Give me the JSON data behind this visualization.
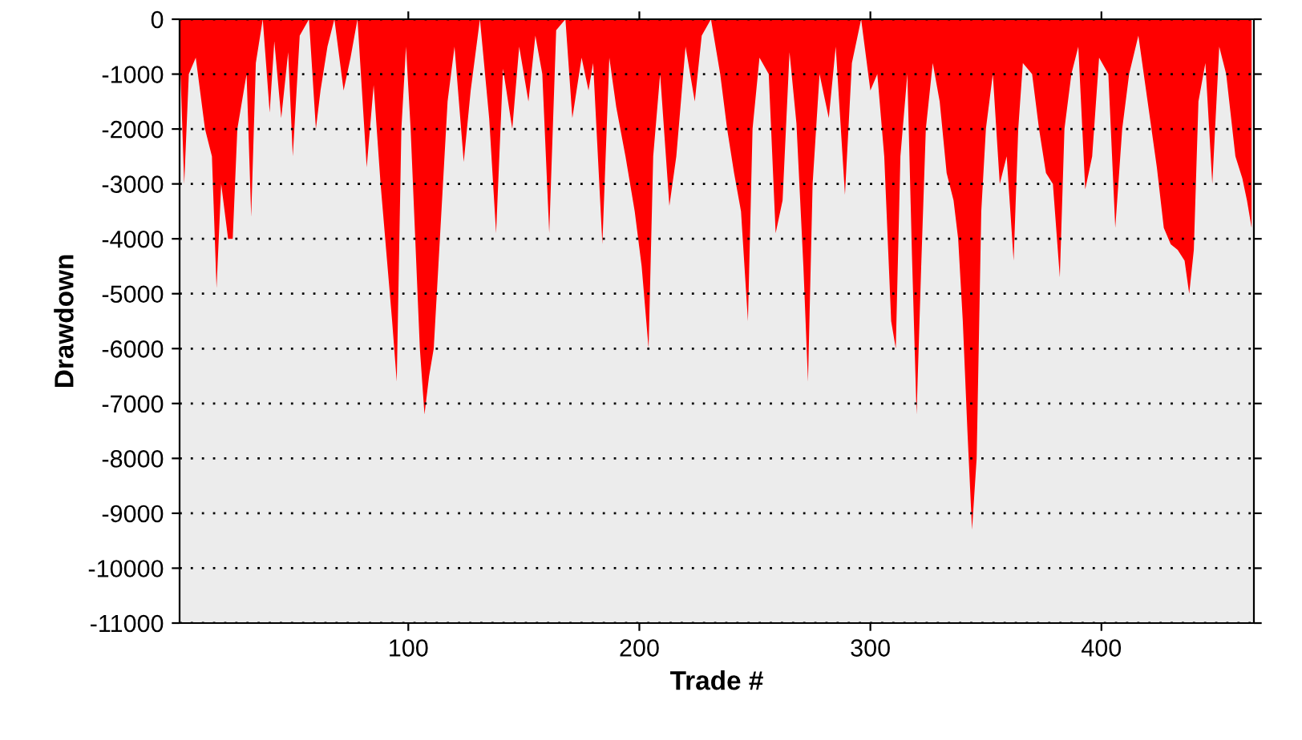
{
  "chart_data": {
    "type": "area",
    "xlabel": "Trade #",
    "ylabel": "Drawdown",
    "x": [
      1,
      3,
      5,
      8,
      12,
      15,
      17,
      19,
      22,
      24,
      26,
      28,
      30,
      32,
      34,
      37,
      40,
      42,
      45,
      48,
      50,
      53,
      57,
      60,
      62,
      65,
      68,
      72,
      75,
      78,
      82,
      85,
      88,
      91,
      93,
      95,
      97,
      99,
      101,
      103,
      105,
      107,
      109,
      111,
      113,
      115,
      117,
      120,
      124,
      127,
      131,
      135,
      138,
      141,
      145,
      148,
      152,
      155,
      158,
      161,
      164,
      168,
      171,
      175,
      178,
      180,
      184,
      187,
      190,
      194,
      198,
      201,
      204,
      206,
      209,
      213,
      216,
      220,
      224,
      227,
      231,
      235,
      238,
      241,
      244,
      247,
      249,
      252,
      256,
      259,
      262,
      265,
      268,
      271,
      273,
      275,
      278,
      282,
      285,
      289,
      292,
      296,
      300,
      303,
      306,
      309,
      311,
      313,
      316,
      318,
      320,
      322,
      324,
      327,
      330,
      333,
      336,
      338,
      340,
      342,
      344,
      346,
      348,
      350,
      353,
      356,
      359,
      362,
      364,
      366,
      370,
      373,
      376,
      379,
      382,
      384,
      387,
      390,
      393,
      396,
      399,
      403,
      406,
      409,
      412,
      416,
      420,
      424,
      427,
      430,
      433,
      436,
      438,
      440,
      442,
      445,
      448,
      451,
      454,
      458,
      461,
      463,
      465
    ],
    "series": [
      {
        "color": "#ff0000",
        "values": [
          -500,
          -3000,
          -1000,
          -700,
          -2000,
          -2500,
          -4900,
          -3000,
          -4000,
          -4000,
          -2000,
          -1500,
          -1000,
          -3600,
          -800,
          0,
          -1700,
          -400,
          -1800,
          -600,
          -2500,
          -300,
          0,
          -2000,
          -1300,
          -500,
          0,
          -1300,
          -700,
          0,
          -2700,
          -1200,
          -3000,
          -4500,
          -5500,
          -6600,
          -2000,
          -500,
          -2000,
          -4000,
          -6000,
          -7200,
          -6500,
          -6000,
          -4500,
          -3000,
          -1500,
          -500,
          -2600,
          -1300,
          0,
          -1800,
          -3900,
          -900,
          -2000,
          -500,
          -1500,
          -300,
          -1000,
          -3900,
          -200,
          0,
          -1800,
          -700,
          -1300,
          -800,
          -4100,
          -700,
          -1600,
          -2500,
          -3500,
          -4500,
          -6000,
          -2500,
          -1000,
          -3400,
          -2500,
          -500,
          -1500,
          -300,
          0,
          -1000,
          -2000,
          -2800,
          -3500,
          -5500,
          -2000,
          -700,
          -1000,
          -3900,
          -3300,
          -600,
          -1900,
          -4500,
          -6600,
          -3000,
          -1000,
          -1800,
          -500,
          -3200,
          -800,
          0,
          -1300,
          -1000,
          -2500,
          -5500,
          -6000,
          -2500,
          -1000,
          -4300,
          -7200,
          -4500,
          -2000,
          -800,
          -1500,
          -2800,
          -3300,
          -4000,
          -5500,
          -7500,
          -9300,
          -8000,
          -3500,
          -2000,
          -1000,
          -3000,
          -2500,
          -4400,
          -2000,
          -800,
          -1000,
          -2000,
          -2800,
          -3000,
          -4700,
          -2000,
          -1000,
          -500,
          -3100,
          -2500,
          -700,
          -1000,
          -3800,
          -2000,
          -1000,
          -300,
          -1500,
          -2700,
          -3800,
          -4100,
          -4200,
          -4400,
          -5000,
          -4200,
          -1500,
          -800,
          -3000,
          -500,
          -1000,
          -2500,
          -2900,
          -3300,
          -3800
        ]
      }
    ],
    "xlim": [
      1,
      466
    ],
    "xticks": [
      100,
      200,
      300,
      400
    ],
    "ylim": [
      -11000,
      0
    ],
    "yticks": [
      -11000,
      -10000,
      -9000,
      -8000,
      -7000,
      -6000,
      -5000,
      -4000,
      -3000,
      -2000,
      -1000,
      0
    ],
    "grid": "y",
    "legend": false
  }
}
